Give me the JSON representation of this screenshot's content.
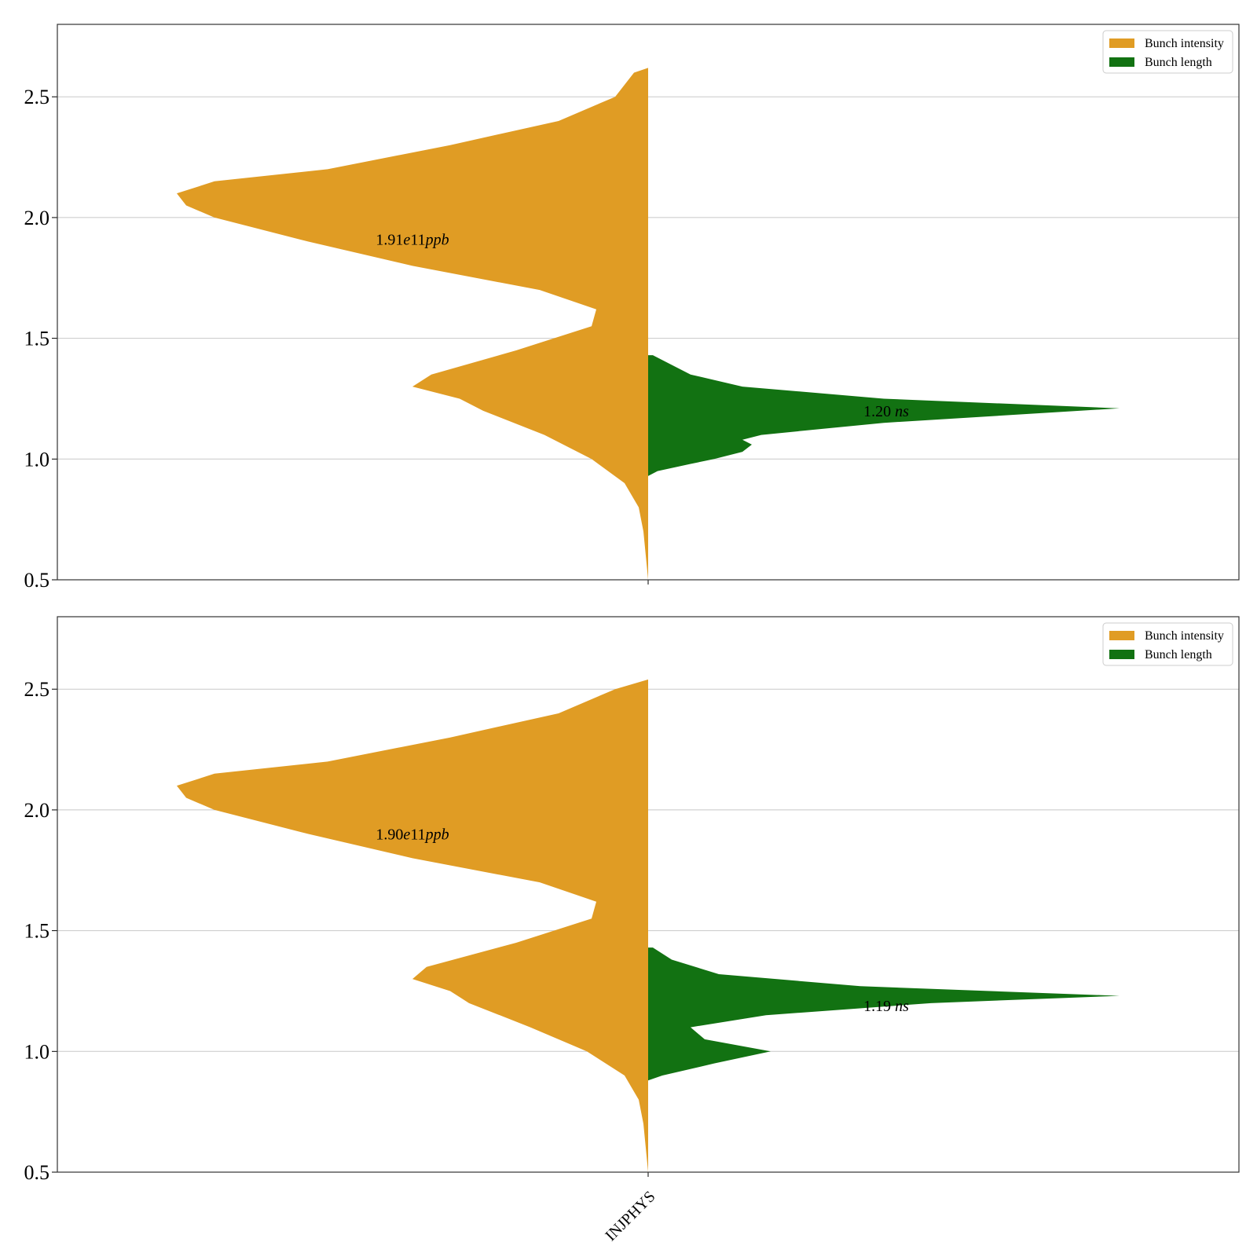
{
  "colors": {
    "intensity": "#E09C24",
    "length": "#127212",
    "grid": "#c8c8c8",
    "axis": "#333333"
  },
  "chart_data": [
    {
      "type": "violin",
      "y_ticks": [
        "0.5",
        "1.0",
        "1.5",
        "2.0",
        "2.5"
      ],
      "ylim": [
        0.5,
        2.8
      ],
      "grid": "horizontal",
      "legend": {
        "placement": "top-right",
        "entries": [
          "Bunch intensity",
          "Bunch length"
        ]
      },
      "categories": [
        "INJPHYS"
      ],
      "series": [
        {
          "name": "Bunch intensity",
          "side": "left",
          "median_label": {
            "prefix": "1.91",
            "italic": "e",
            "mid": "11",
            "italic2": "ppb",
            "y": 1.91
          },
          "density": [
            [
              0.5,
              0.0
            ],
            [
              0.7,
              0.01
            ],
            [
              0.8,
              0.02
            ],
            [
              0.9,
              0.05
            ],
            [
              1.0,
              0.12
            ],
            [
              1.1,
              0.22
            ],
            [
              1.2,
              0.35
            ],
            [
              1.25,
              0.4
            ],
            [
              1.3,
              0.5
            ],
            [
              1.35,
              0.46
            ],
            [
              1.45,
              0.28
            ],
            [
              1.55,
              0.12
            ],
            [
              1.62,
              0.11
            ],
            [
              1.7,
              0.23
            ],
            [
              1.8,
              0.5
            ],
            [
              1.9,
              0.72
            ],
            [
              2.0,
              0.92
            ],
            [
              2.05,
              0.98
            ],
            [
              2.1,
              1.0
            ],
            [
              2.15,
              0.92
            ],
            [
              2.2,
              0.68
            ],
            [
              2.3,
              0.42
            ],
            [
              2.4,
              0.19
            ],
            [
              2.5,
              0.07
            ],
            [
              2.6,
              0.03
            ],
            [
              2.62,
              0.0
            ]
          ]
        },
        {
          "name": "Bunch length",
          "side": "right",
          "median_label": {
            "prefix": "1.20 ",
            "italic": "ns",
            "mid": "",
            "italic2": "",
            "y": 1.2
          },
          "density": [
            [
              0.93,
              0.0
            ],
            [
              0.95,
              0.02
            ],
            [
              0.98,
              0.09
            ],
            [
              1.0,
              0.14
            ],
            [
              1.03,
              0.2
            ],
            [
              1.06,
              0.22
            ],
            [
              1.08,
              0.2
            ],
            [
              1.1,
              0.24
            ],
            [
              1.15,
              0.5
            ],
            [
              1.21,
              1.0
            ],
            [
              1.25,
              0.5
            ],
            [
              1.3,
              0.2
            ],
            [
              1.35,
              0.09
            ],
            [
              1.4,
              0.04
            ],
            [
              1.43,
              0.01
            ]
          ]
        }
      ]
    },
    {
      "type": "violin",
      "y_ticks": [
        "0.5",
        "1.0",
        "1.5",
        "2.0",
        "2.5"
      ],
      "ylim": [
        0.5,
        2.8
      ],
      "grid": "horizontal",
      "legend": {
        "placement": "top-right",
        "entries": [
          "Bunch intensity",
          "Bunch length"
        ]
      },
      "categories": [
        "INJPHYS"
      ],
      "series": [
        {
          "name": "Bunch intensity",
          "side": "left",
          "median_label": {
            "prefix": "1.90",
            "italic": "e",
            "mid": "11",
            "italic2": "ppb",
            "y": 1.9
          },
          "density": [
            [
              0.5,
              0.0
            ],
            [
              0.7,
              0.01
            ],
            [
              0.8,
              0.02
            ],
            [
              0.9,
              0.05
            ],
            [
              1.0,
              0.13
            ],
            [
              1.1,
              0.25
            ],
            [
              1.2,
              0.38
            ],
            [
              1.25,
              0.42
            ],
            [
              1.3,
              0.5
            ],
            [
              1.35,
              0.47
            ],
            [
              1.45,
              0.28
            ],
            [
              1.55,
              0.12
            ],
            [
              1.62,
              0.11
            ],
            [
              1.7,
              0.23
            ],
            [
              1.8,
              0.5
            ],
            [
              1.9,
              0.72
            ],
            [
              2.0,
              0.92
            ],
            [
              2.05,
              0.98
            ],
            [
              2.1,
              1.0
            ],
            [
              2.15,
              0.92
            ],
            [
              2.2,
              0.68
            ],
            [
              2.3,
              0.42
            ],
            [
              2.4,
              0.19
            ],
            [
              2.5,
              0.07
            ],
            [
              2.54,
              0.0
            ]
          ]
        },
        {
          "name": "Bunch length",
          "side": "right",
          "median_label": {
            "prefix": "1.19 ",
            "italic": "ns",
            "mid": "",
            "italic2": "",
            "y": 1.19
          },
          "density": [
            [
              0.88,
              0.0
            ],
            [
              0.9,
              0.03
            ],
            [
              0.95,
              0.14
            ],
            [
              1.0,
              0.26
            ],
            [
              1.05,
              0.12
            ],
            [
              1.1,
              0.09
            ],
            [
              1.15,
              0.25
            ],
            [
              1.2,
              0.6
            ],
            [
              1.23,
              1.0
            ],
            [
              1.27,
              0.45
            ],
            [
              1.32,
              0.15
            ],
            [
              1.38,
              0.05
            ],
            [
              1.43,
              0.01
            ]
          ]
        }
      ]
    }
  ]
}
